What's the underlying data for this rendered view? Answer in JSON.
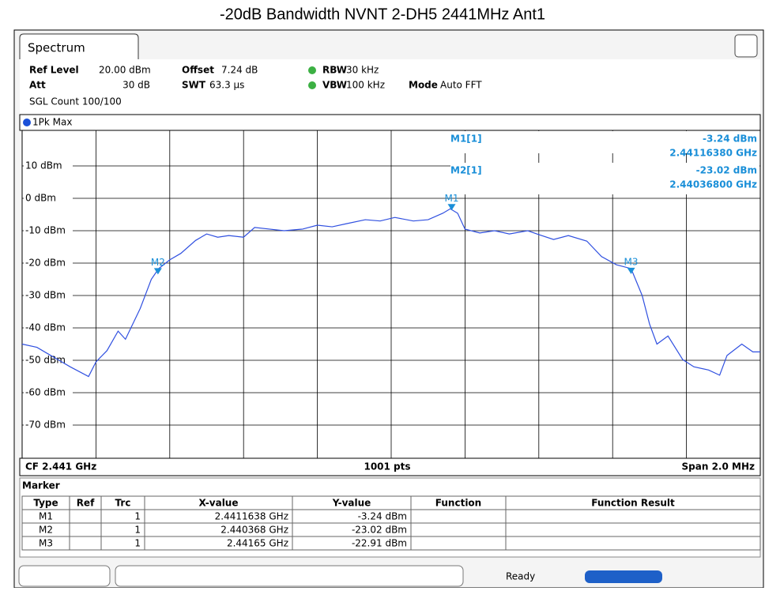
{
  "header": {
    "title": "-20dB Bandwidth NVNT 2-DH5 2441MHz Ant1",
    "tab": "Spectrum"
  },
  "settings": {
    "row1": [
      {
        "label": "Ref Level",
        "value": "20.00 dBm"
      },
      {
        "label": "Offset",
        "value": "7.24 dB"
      },
      {
        "label": "RBW",
        "value": "30 kHz"
      }
    ],
    "row2": [
      {
        "label": "Att",
        "value": "30 dB"
      },
      {
        "label": "SWT",
        "value": "63.3 µs"
      },
      {
        "label": "VBW",
        "value": "100 kHz"
      },
      {
        "label": "Mode",
        "value": "Auto FFT"
      }
    ],
    "count": "SGL Count 100/100"
  },
  "plot": {
    "trace_name": "1Pk Max",
    "xlim": [
      -1,
      1
    ],
    "ylim": [
      -80,
      20
    ],
    "xgrid": [
      -0.8,
      -0.6,
      -0.4,
      -0.2,
      0,
      0.2,
      0.4,
      0.6,
      0.8
    ],
    "ygrid": [
      10,
      0,
      -10,
      -20,
      -30,
      -40,
      -50,
      -60,
      -70
    ],
    "yticks": [
      {
        "value": 10,
        "label": "10 dBm"
      },
      {
        "value": 0,
        "label": "0 dBm"
      },
      {
        "value": -10,
        "label": "-10 dBm"
      },
      {
        "value": -20,
        "label": "-20 dBm"
      },
      {
        "value": -30,
        "label": "-30 dBm"
      },
      {
        "value": -40,
        "label": "-40 dBm"
      },
      {
        "value": -50,
        "label": "-50 dBm"
      },
      {
        "value": -60,
        "label": "-60 dBm"
      },
      {
        "value": -70,
        "label": "-70 dBm"
      }
    ],
    "color": "#3050e0",
    "x": [
      -1.0,
      -0.96,
      -0.93,
      -0.9,
      -0.87,
      -0.82,
      -0.8,
      -0.77,
      -0.74,
      -0.72,
      -0.68,
      -0.65,
      -0.63,
      -0.6,
      -0.57,
      -0.53,
      -0.5,
      -0.47,
      -0.44,
      -0.4,
      -0.37,
      -0.33,
      -0.29,
      -0.24,
      -0.2,
      -0.16,
      -0.12,
      -0.07,
      -0.03,
      0.01,
      0.06,
      0.1,
      0.14,
      0.16,
      0.18,
      0.2,
      0.24,
      0.28,
      0.32,
      0.37,
      0.4,
      0.44,
      0.48,
      0.53,
      0.57,
      0.61,
      0.65,
      0.68,
      0.7,
      0.72,
      0.75,
      0.79,
      0.82,
      0.86,
      0.89,
      0.91,
      0.95,
      0.98,
      1.0
    ],
    "values": [
      -45,
      -46,
      -48,
      -50,
      -52,
      -55,
      -50.5,
      -47,
      -41,
      -43.5,
      -34,
      -25,
      -21.7,
      -19,
      -17,
      -13,
      -11,
      -12,
      -11.5,
      -12,
      -9,
      -9.5,
      -10,
      -9.5,
      -8.3,
      -8.8,
      -7.8,
      -6.6,
      -7,
      -5.9,
      -7,
      -6.6,
      -4.6,
      -3.24,
      -4.6,
      -9.5,
      -10.7,
      -10,
      -11,
      -10,
      -11.2,
      -12.7,
      -11.5,
      -13.2,
      -18,
      -20.5,
      -21.7,
      -30,
      -38.8,
      -45,
      -42.5,
      -49.8,
      -52,
      -53,
      -54.6,
      -48.5,
      -45,
      -47.4,
      -47.4
    ],
    "markers": [
      {
        "label": "M1",
        "x": 0.1638,
        "y": -3.24
      },
      {
        "label": "M2",
        "x": -0.632,
        "y": -23.02
      },
      {
        "label": "M3",
        "x": 0.65,
        "y": -22.91
      }
    ],
    "readout": [
      {
        "name": "M1[1]",
        "level": "-3.24 dBm",
        "freq": "2.44116380 GHz"
      },
      {
        "name": "M2[1]",
        "level": "-23.02 dBm",
        "freq": "2.44036800 GHz"
      }
    ],
    "footer": {
      "left": "CF 2.441 GHz",
      "center": "1001 pts",
      "right": "Span 2.0 MHz"
    }
  },
  "table": {
    "title": "Marker",
    "columns": [
      "Type",
      "Ref",
      "Trc",
      "X-value",
      "Y-value",
      "Function",
      "Function Result"
    ],
    "rows": [
      [
        "M1",
        "",
        "1",
        "2.4411638 GHz",
        "-3.24 dBm",
        "",
        ""
      ],
      [
        "M2",
        "",
        "1",
        "2.440368 GHz",
        "-23.02 dBm",
        "",
        ""
      ],
      [
        "M3",
        "",
        "1",
        "2.44165 GHz",
        "-22.91 dBm",
        "",
        ""
      ]
    ]
  },
  "status": "Ready"
}
